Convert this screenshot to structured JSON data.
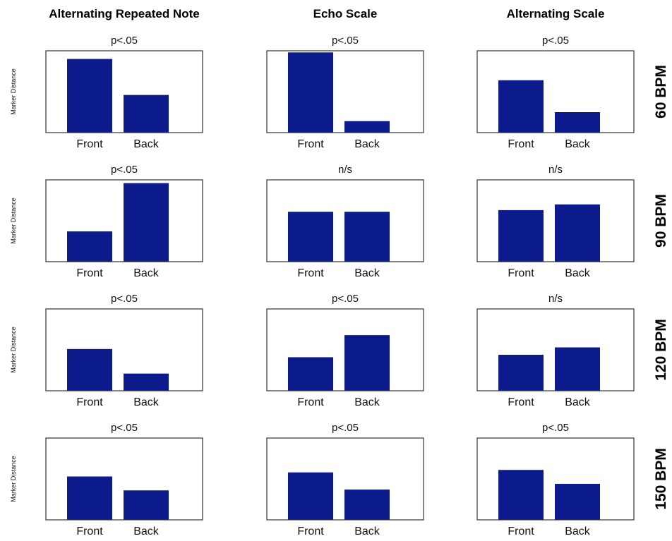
{
  "chart_data": {
    "type": "bar",
    "bar_color": "#0b1b8c",
    "categories": [
      "Front",
      "Back"
    ],
    "ylabel": "Marker Distance",
    "columns": [
      "Alternating Repeated Note",
      "Echo Scale",
      "Alternating Scale"
    ],
    "rows": [
      "60 BPM",
      "90 BPM",
      "120 BPM",
      "150 BPM"
    ],
    "panels": [
      [
        {
          "significance": "p<.05",
          "values": [
            0.9,
            0.46
          ]
        },
        {
          "significance": "p<.05",
          "values": [
            0.98,
            0.14
          ]
        },
        {
          "significance": "p<.05",
          "values": [
            0.64,
            0.25
          ]
        }
      ],
      [
        {
          "significance": "p<.05",
          "values": [
            0.37,
            0.96
          ]
        },
        {
          "significance": "n/s",
          "values": [
            0.61,
            0.61
          ]
        },
        {
          "significance": "n/s",
          "values": [
            0.63,
            0.7
          ]
        }
      ],
      [
        {
          "significance": "p<.05",
          "values": [
            0.51,
            0.21
          ]
        },
        {
          "significance": "p<.05",
          "values": [
            0.41,
            0.68
          ]
        },
        {
          "significance": "n/s",
          "values": [
            0.44,
            0.53
          ]
        }
      ],
      [
        {
          "significance": "p<.05",
          "values": [
            0.53,
            0.36
          ]
        },
        {
          "significance": "p<.05",
          "values": [
            0.58,
            0.37
          ]
        },
        {
          "significance": "p<.05",
          "values": [
            0.61,
            0.44
          ]
        }
      ]
    ]
  }
}
